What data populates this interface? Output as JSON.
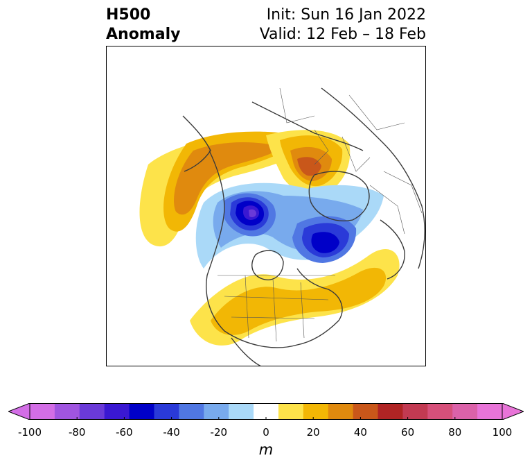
{
  "title": {
    "left_line1": "H500",
    "left_line2": "Anomaly",
    "init": "Init: Sun 16 Jan 2022",
    "valid": "Valid: 12 Feb – 18 Feb"
  },
  "map": {
    "projection": "north polar stereographic",
    "variable": "500 hPa geopotential height anomaly",
    "features": [
      {
        "name": "western-north-america-ridge",
        "anomaly_m": 45
      },
      {
        "name": "northern-siberia-ridge",
        "anomaly_m": 55
      },
      {
        "name": "arctic-canada-trough",
        "anomaly_m": -75
      },
      {
        "name": "northern-europe-trough",
        "anomaly_m": -65
      },
      {
        "name": "eastern-north-america-ridge",
        "anomaly_m": 35
      }
    ]
  },
  "colorbar": {
    "unit": "m",
    "range": [
      -100,
      100
    ],
    "ticks": [
      "-100",
      "-80",
      "-60",
      "-40",
      "-20",
      "0",
      "20",
      "40",
      "60",
      "80",
      "100"
    ],
    "bins": [
      -100,
      -90,
      -80,
      -70,
      -60,
      -50,
      -40,
      -30,
      -20,
      -10,
      10,
      20,
      30,
      40,
      50,
      60,
      70,
      80,
      90,
      100
    ],
    "colors": [
      "#d36ee6",
      "#a055e0",
      "#6a3ad8",
      "#3a18d2",
      "#0000c8",
      "#2a3ad8",
      "#5077e3",
      "#78aaed",
      "#aad9f8",
      "#ffffff",
      "#fde34a",
      "#f2b705",
      "#e08a0e",
      "#c9571a",
      "#b02424",
      "#c23a52",
      "#d6507a",
      "#db62a9",
      "#e874d8"
    ],
    "extend_low_color": "#d36ee6",
    "extend_high_color": "#e874d8"
  }
}
